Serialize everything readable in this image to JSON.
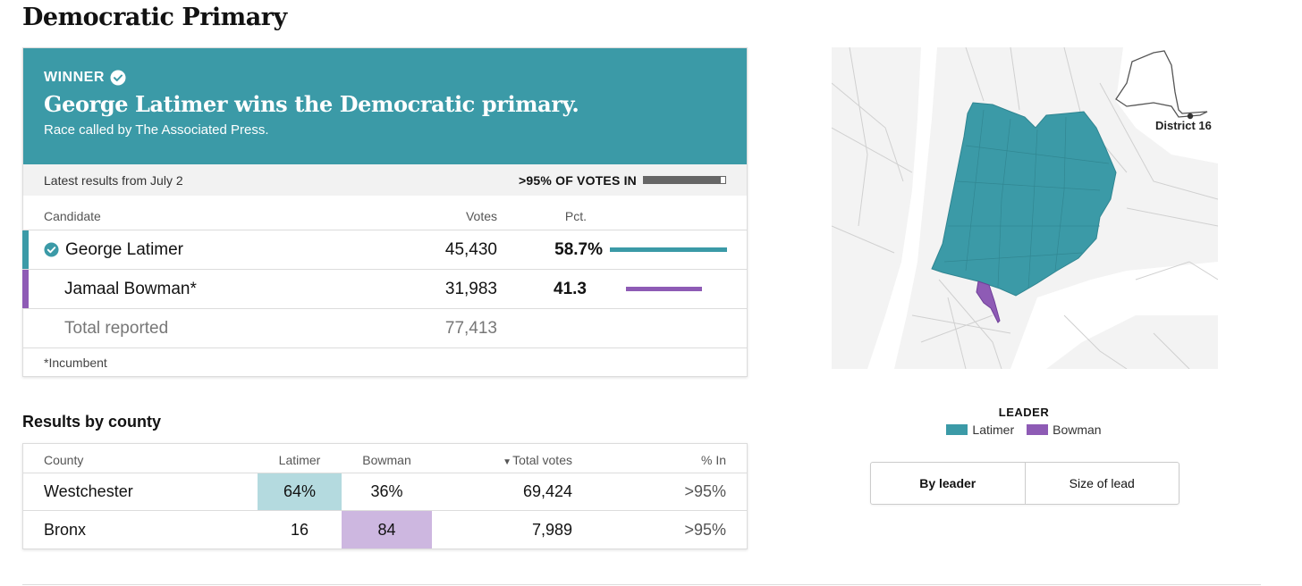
{
  "page": {
    "title": "Democratic Primary"
  },
  "winner": {
    "label": "WINNER",
    "headline": "George Latimer wins the Democratic primary.",
    "subtext": "Race called by The Associated Press.",
    "banner_color": "#3b9aa7"
  },
  "status": {
    "latest": "Latest results from July 2",
    "votes_in": ">95% OF VOTES IN",
    "votes_in_fraction": 0.95
  },
  "results_table": {
    "headers": {
      "candidate": "Candidate",
      "votes": "Votes",
      "pct": "Pct."
    },
    "candidates": [
      {
        "name": "George Latimer",
        "votes": "45,430",
        "pct": "58.7%",
        "pct_value": 58.7,
        "color": "#3b9aa7",
        "winner": true
      },
      {
        "name": "Jamaal Bowman*",
        "votes": "31,983",
        "pct": "41.3",
        "pct_value": 41.3,
        "color": "#8e5bb5",
        "winner": false
      }
    ],
    "total": {
      "label": "Total reported",
      "votes": "77,413"
    },
    "footnote": "*Incumbent"
  },
  "county_results": {
    "title": "Results by county",
    "headers": {
      "county": "County",
      "latimer": "Latimer",
      "bowman": "Bowman",
      "total": "Total votes",
      "pct_in": "% In"
    },
    "rows": [
      {
        "county": "Westchester",
        "latimer": "64%",
        "bowman": "36%",
        "total": "69,424",
        "pct_in": ">95%",
        "leader": "latimer"
      },
      {
        "county": "Bronx",
        "latimer": "16",
        "bowman": "84",
        "total": "7,989",
        "pct_in": ">95%",
        "leader": "bowman"
      }
    ],
    "highlight_colors": {
      "latimer": "#b4dadf",
      "bowman": "#cdb7e0"
    }
  },
  "map": {
    "district_label": "District 16",
    "legend_title": "LEADER",
    "legend": [
      {
        "name": "Latimer",
        "color": "#3b9aa7"
      },
      {
        "name": "Bowman",
        "color": "#8e5bb5"
      }
    ]
  },
  "toggle": {
    "options": [
      {
        "label": "By leader",
        "active": true
      },
      {
        "label": "Size of lead",
        "active": false
      }
    ]
  }
}
